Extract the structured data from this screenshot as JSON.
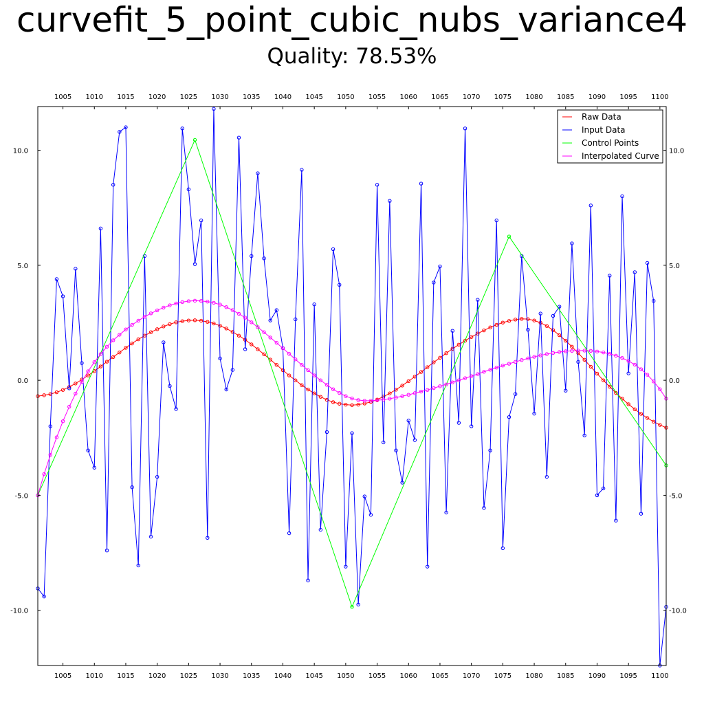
{
  "title": "curvefit_5_point_cubic_nubs_variance4",
  "subtitle": "Quality: 78.53%",
  "chart_data": {
    "type": "line",
    "xlim": [
      1001,
      1101
    ],
    "ylim": [
      -12.4,
      11.9
    ],
    "x_ticks": [
      1005,
      1010,
      1015,
      1020,
      1025,
      1030,
      1035,
      1040,
      1045,
      1050,
      1055,
      1060,
      1065,
      1070,
      1075,
      1080,
      1085,
      1090,
      1095,
      1100
    ],
    "x_tick_labels": [
      "1005",
      "1010",
      "1015",
      "1020",
      "1025",
      "1030",
      "1035",
      "1040",
      "1045",
      "1050",
      "1055",
      "1060",
      "1065",
      "1070",
      "1075",
      "1080",
      "1085",
      "1090",
      "1095",
      "1100"
    ],
    "y_ticks": [
      10,
      5,
      0,
      -5,
      -10
    ],
    "y_tick_labels": [
      "10.0",
      "5.0",
      "0.0",
      "-5.0",
      "-10.0"
    ],
    "legend": {
      "position": "top-right",
      "entries": [
        {
          "label": "Raw Data",
          "color": "#ff0000"
        },
        {
          "label": "Input Data",
          "color": "#0000ff"
        },
        {
          "label": "Control Points",
          "color": "#00ff00"
        },
        {
          "label": "Interpolated Curve",
          "color": "#ff00ff"
        }
      ]
    },
    "series": [
      {
        "name": "Raw Data",
        "color": "#ff0000",
        "markers": true,
        "x": [
          1001,
          1002,
          1003,
          1004,
          1005,
          1006,
          1007,
          1008,
          1009,
          1010,
          1011,
          1012,
          1013,
          1014,
          1015,
          1016,
          1017,
          1018,
          1019,
          1020,
          1021,
          1022,
          1023,
          1024,
          1025,
          1026,
          1027,
          1028,
          1029,
          1030,
          1031,
          1032,
          1033,
          1034,
          1035,
          1036,
          1037,
          1038,
          1039,
          1040,
          1041,
          1042,
          1043,
          1044,
          1045,
          1046,
          1047,
          1048,
          1049,
          1050,
          1051,
          1052,
          1053,
          1054,
          1055,
          1056,
          1057,
          1058,
          1059,
          1060,
          1061,
          1062,
          1063,
          1064,
          1065,
          1066,
          1067,
          1068,
          1069,
          1070,
          1071,
          1072,
          1073,
          1074,
          1075,
          1076,
          1077,
          1078,
          1079,
          1080,
          1081,
          1082,
          1083,
          1084,
          1085,
          1086,
          1087,
          1088,
          1089,
          1090,
          1091,
          1092,
          1093,
          1094,
          1095,
          1096,
          1097,
          1098,
          1099,
          1100,
          1101
        ],
        "y": [
          -0.69,
          -0.65,
          -0.6,
          -0.52,
          -0.42,
          -0.29,
          -0.14,
          0.03,
          0.21,
          0.4,
          0.6,
          0.81,
          1.01,
          1.21,
          1.41,
          1.6,
          1.78,
          1.94,
          2.09,
          2.22,
          2.34,
          2.44,
          2.52,
          2.57,
          2.6,
          2.61,
          2.59,
          2.54,
          2.47,
          2.37,
          2.25,
          2.1,
          1.94,
          1.76,
          1.56,
          1.35,
          1.13,
          0.9,
          0.67,
          0.44,
          0.21,
          0.0,
          -0.21,
          -0.4,
          -0.57,
          -0.72,
          -0.85,
          -0.95,
          -1.02,
          -1.06,
          -1.08,
          -1.06,
          -1.01,
          -0.94,
          -0.84,
          -0.71,
          -0.57,
          -0.41,
          -0.23,
          -0.04,
          0.16,
          0.36,
          0.57,
          0.78,
          0.98,
          1.18,
          1.37,
          1.55,
          1.72,
          1.88,
          2.03,
          2.17,
          2.3,
          2.41,
          2.51,
          2.58,
          2.64,
          2.67,
          2.66,
          2.6,
          2.5,
          2.36,
          2.18,
          1.96,
          1.72,
          1.46,
          1.18,
          0.89,
          0.59,
          0.29,
          0.0,
          -0.28,
          -0.55,
          -0.8,
          -1.04,
          -1.26,
          -1.46,
          -1.64,
          -1.8,
          -1.94,
          -2.06
        ]
      },
      {
        "name": "Input Data",
        "color": "#0000ff",
        "markers": true,
        "x": [
          1001,
          1002,
          1003,
          1004,
          1005,
          1006,
          1007,
          1008,
          1009,
          1010,
          1011,
          1012,
          1013,
          1014,
          1015,
          1016,
          1017,
          1018,
          1019,
          1020,
          1021,
          1022,
          1023,
          1024,
          1025,
          1026,
          1027,
          1028,
          1029,
          1030,
          1031,
          1032,
          1033,
          1034,
          1035,
          1036,
          1037,
          1038,
          1039,
          1040,
          1041,
          1042,
          1043,
          1044,
          1045,
          1046,
          1047,
          1048,
          1049,
          1050,
          1051,
          1052,
          1053,
          1054,
          1055,
          1056,
          1057,
          1058,
          1059,
          1060,
          1061,
          1062,
          1063,
          1064,
          1065,
          1066,
          1067,
          1068,
          1069,
          1070,
          1071,
          1072,
          1073,
          1074,
          1075,
          1076,
          1077,
          1078,
          1079,
          1080,
          1081,
          1082,
          1083,
          1084,
          1085,
          1086,
          1087,
          1088,
          1089,
          1090,
          1091,
          1092,
          1093,
          1094,
          1095,
          1096,
          1097,
          1098,
          1099,
          1100,
          1101
        ],
        "y": [
          -9.05,
          -9.4,
          -2.0,
          4.4,
          3.65,
          -0.35,
          4.85,
          0.75,
          -3.05,
          -3.8,
          6.6,
          -7.4,
          8.5,
          10.8,
          11.0,
          -4.65,
          -8.05,
          5.4,
          -6.8,
          -4.2,
          1.65,
          -0.25,
          -1.25,
          10.95,
          8.3,
          5.05,
          6.95,
          -6.85,
          11.8,
          0.95,
          -0.4,
          0.45,
          10.55,
          1.35,
          5.4,
          9.0,
          5.3,
          2.6,
          3.05,
          1.4,
          -6.65,
          2.65,
          9.15,
          -8.7,
          3.3,
          -6.5,
          -2.25,
          5.7,
          4.15,
          -8.1,
          -2.3,
          -9.75,
          -5.05,
          -5.85,
          8.5,
          -2.7,
          7.8,
          -3.05,
          -4.45,
          -1.75,
          -2.6,
          8.55,
          -8.1,
          4.25,
          4.95,
          -5.75,
          2.15,
          -1.85,
          10.95,
          -2.0,
          3.5,
          -5.55,
          -3.05,
          6.95,
          -7.3,
          -1.6,
          -0.6,
          5.4,
          2.2,
          -1.45,
          2.9,
          -4.2,
          2.8,
          3.2,
          -0.45,
          5.95,
          0.8,
          -2.4,
          7.6,
          -5.0,
          -4.7,
          4.55,
          -6.1,
          8.0,
          0.3,
          4.7,
          -5.8,
          5.1,
          3.45,
          -12.4,
          -9.85
        ]
      },
      {
        "name": "Control Points",
        "color": "#00ff00",
        "markers": true,
        "x": [
          1001,
          1026,
          1051,
          1076,
          1101
        ],
        "y": [
          -5.0,
          10.45,
          -9.85,
          6.25,
          -3.7
        ]
      },
      {
        "name": "Interpolated Curve",
        "color": "#ff00ff",
        "markers": true,
        "x": [
          1001,
          1002,
          1003,
          1004,
          1005,
          1006,
          1007,
          1008,
          1009,
          1010,
          1011,
          1012,
          1013,
          1014,
          1015,
          1016,
          1017,
          1018,
          1019,
          1020,
          1021,
          1022,
          1023,
          1024,
          1025,
          1026,
          1027,
          1028,
          1029,
          1030,
          1031,
          1032,
          1033,
          1034,
          1035,
          1036,
          1037,
          1038,
          1039,
          1040,
          1041,
          1042,
          1043,
          1044,
          1045,
          1046,
          1047,
          1048,
          1049,
          1050,
          1051,
          1052,
          1053,
          1054,
          1055,
          1056,
          1057,
          1058,
          1059,
          1060,
          1061,
          1062,
          1063,
          1064,
          1065,
          1066,
          1067,
          1068,
          1069,
          1070,
          1071,
          1072,
          1073,
          1074,
          1075,
          1076,
          1077,
          1078,
          1079,
          1080,
          1081,
          1082,
          1083,
          1084,
          1085,
          1086,
          1087,
          1088,
          1089,
          1090,
          1091,
          1092,
          1093,
          1094,
          1095,
          1096,
          1097,
          1098,
          1099,
          1100,
          1101
        ],
        "y": [
          -5.0,
          -4.08,
          -3.24,
          -2.48,
          -1.78,
          -1.15,
          -0.58,
          -0.07,
          0.39,
          0.79,
          1.14,
          1.46,
          1.74,
          1.98,
          2.21,
          2.41,
          2.59,
          2.76,
          2.91,
          3.04,
          3.16,
          3.26,
          3.34,
          3.4,
          3.44,
          3.46,
          3.45,
          3.42,
          3.37,
          3.29,
          3.18,
          3.05,
          2.89,
          2.72,
          2.52,
          2.31,
          2.09,
          1.86,
          1.63,
          1.39,
          1.15,
          0.91,
          0.67,
          0.44,
          0.21,
          0.0,
          -0.2,
          -0.39,
          -0.55,
          -0.69,
          -0.79,
          -0.86,
          -0.89,
          -0.89,
          -0.87,
          -0.84,
          -0.8,
          -0.75,
          -0.69,
          -0.63,
          -0.56,
          -0.49,
          -0.42,
          -0.34,
          -0.26,
          -0.18,
          -0.09,
          0.0,
          0.09,
          0.18,
          0.27,
          0.37,
          0.46,
          0.55,
          0.64,
          0.72,
          0.8,
          0.88,
          0.95,
          1.02,
          1.08,
          1.14,
          1.19,
          1.23,
          1.26,
          1.28,
          1.29,
          1.29,
          1.28,
          1.25,
          1.21,
          1.15,
          1.07,
          0.97,
          0.84,
          0.68,
          0.48,
          0.24,
          -0.05,
          -0.39,
          -0.8
        ]
      }
    ]
  }
}
